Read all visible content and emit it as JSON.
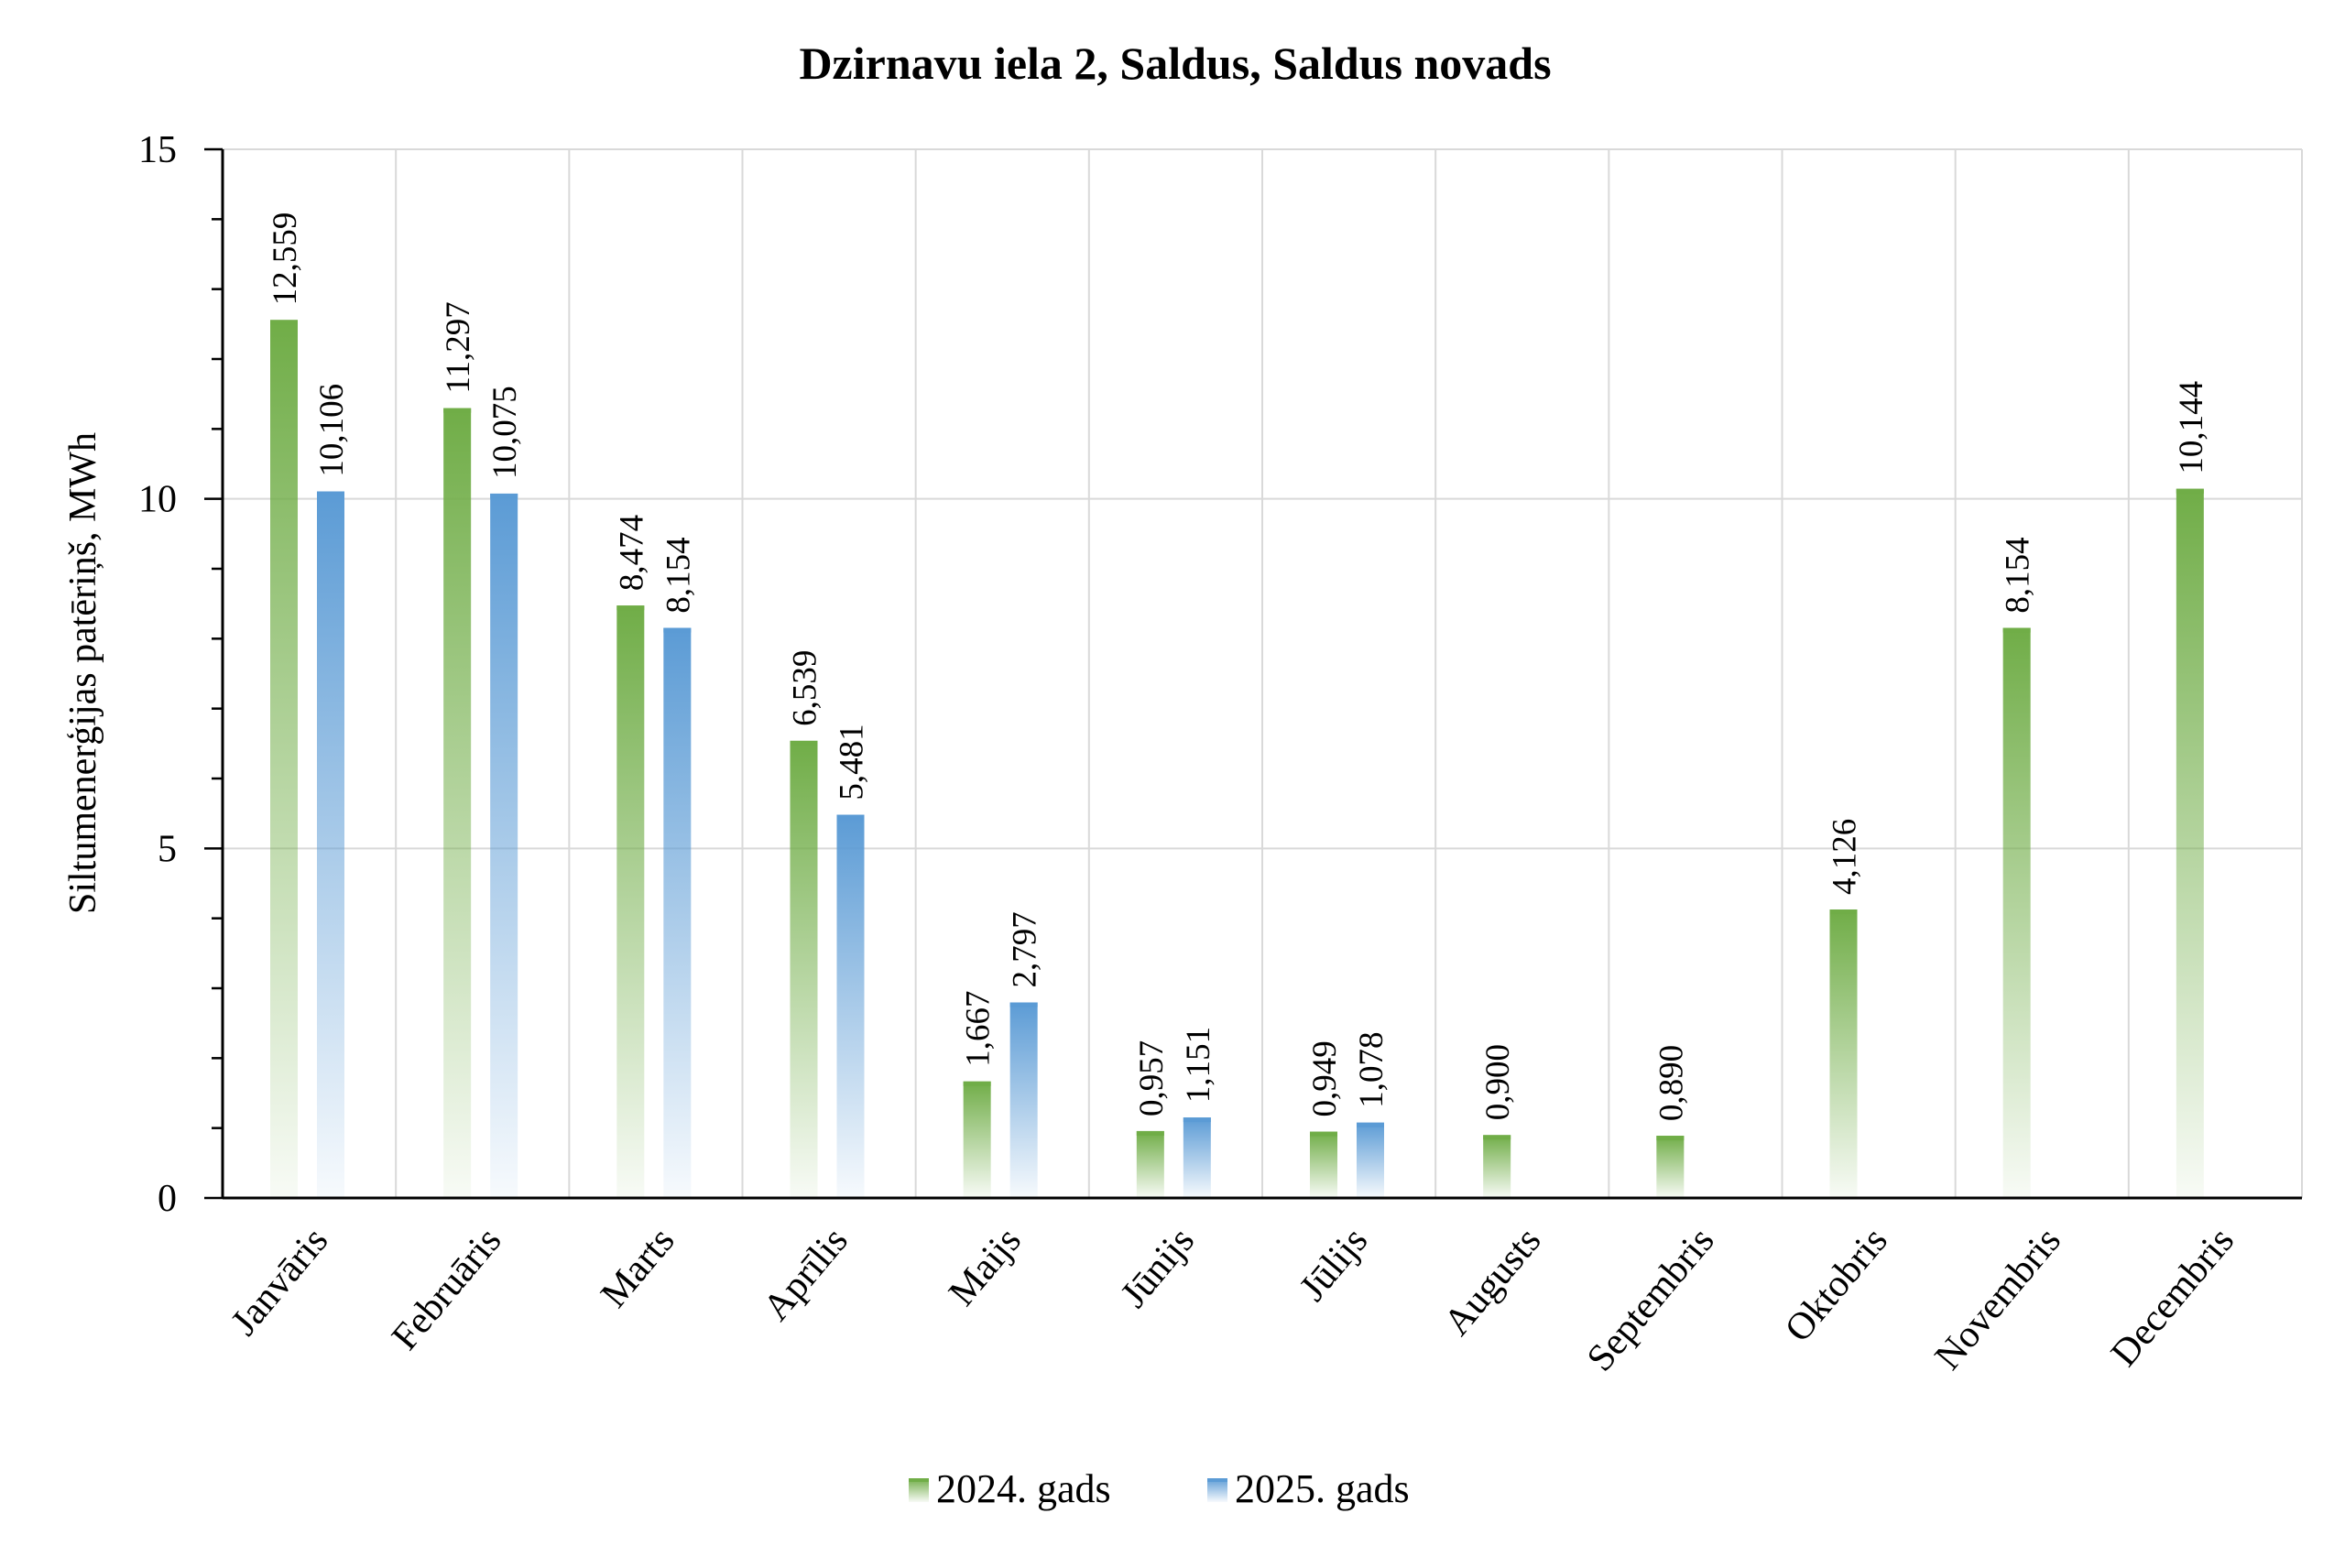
{
  "chart_data": {
    "type": "bar",
    "title": "Dzirnavu iela 2, Saldus, Saldus novads",
    "xlabel": "",
    "ylabel": "Siltumenerģijas patēriņš, MWh",
    "ylim": [
      0,
      15
    ],
    "yticks": [
      "0",
      "5",
      "10",
      "15"
    ],
    "grid": true,
    "legend_position": "bottom",
    "categories": [
      "Janvāris",
      "Februāris",
      "Marts",
      "Aprīlis",
      "Maijs",
      "Jūnijs",
      "Jūlijs",
      "Augusts",
      "Septembris",
      "Oktobris",
      "Novembris",
      "Decembris"
    ],
    "series": [
      {
        "name": "2024. gads",
        "color": "#70ad47",
        "values": [
          12.559,
          11.297,
          8.474,
          6.539,
          1.667,
          0.957,
          0.949,
          0.9,
          0.89,
          4.126,
          8.154,
          10.144
        ],
        "labels": [
          "12,559",
          "11,297",
          "8,474",
          "6,539",
          "1,667",
          "0,957",
          "0,949",
          "0,900",
          "0,890",
          "4,126",
          "8,154",
          "10,144"
        ]
      },
      {
        "name": "2025. gads",
        "color": "#5b9bd5",
        "values": [
          10.106,
          10.075,
          8.154,
          5.481,
          2.797,
          1.151,
          1.078,
          null,
          null,
          null,
          null,
          null
        ],
        "labels": [
          "10,106",
          "10,075",
          "8,154",
          "5,481",
          "2,797",
          "1,151",
          "1,078",
          "",
          "",
          "",
          "",
          ""
        ]
      }
    ]
  }
}
